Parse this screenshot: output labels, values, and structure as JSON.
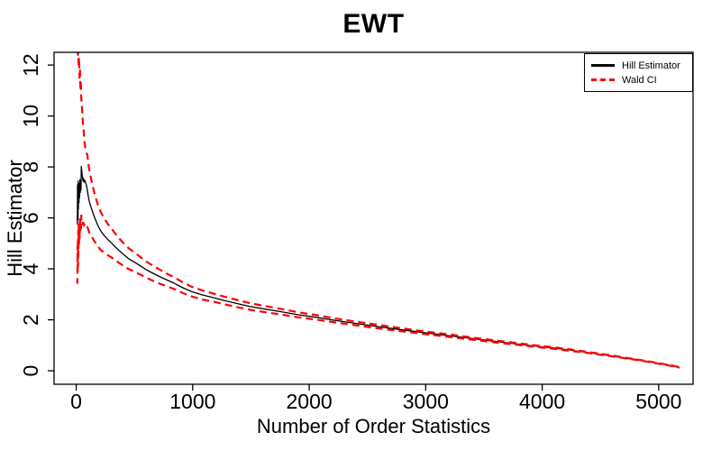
{
  "figure": {
    "title": "EWT",
    "xlabel": "Number of Order Statistics",
    "ylabel": "Hill Estimator"
  },
  "legend": {
    "position": "top-right",
    "items": [
      {
        "label": "Hill Estimator",
        "color": "#000000",
        "style": "solid"
      },
      {
        "label": "Wald CI",
        "color": "#ff0000",
        "style": "dashed"
      }
    ]
  },
  "chart_data": {
    "type": "line",
    "title": "EWT",
    "xlabel": "Number of Order Statistics",
    "ylabel": "Hill Estimator",
    "xlim": [
      -190,
      5295
    ],
    "ylim": [
      -0.53,
      12.5
    ],
    "xticks": [
      0,
      1000,
      2000,
      3000,
      4000,
      5000
    ],
    "yticks": [
      0,
      2,
      4,
      6,
      8,
      10,
      12
    ],
    "grid": false,
    "background": "#ffffff",
    "axis_color": "#000000",
    "legend_position": "top-right",
    "series": [
      {
        "id": "hill-estimator",
        "name": "Hill Estimator",
        "color": "#000000",
        "style": "solid",
        "width": 1.3,
        "points": [
          [
            8,
            6.1
          ],
          [
            10,
            5.75
          ],
          [
            11,
            7.3
          ],
          [
            13,
            6.2
          ],
          [
            14,
            7.0
          ],
          [
            16,
            5.95
          ],
          [
            17,
            7.45
          ],
          [
            19,
            6.35
          ],
          [
            21,
            7.2
          ],
          [
            24,
            6.6
          ],
          [
            26,
            7.35
          ],
          [
            29,
            6.8
          ],
          [
            32,
            7.5
          ],
          [
            35,
            7.0
          ],
          [
            38,
            7.3
          ],
          [
            41,
            7.1
          ],
          [
            44,
            8.02
          ],
          [
            47,
            7.9
          ],
          [
            50,
            7.75
          ],
          [
            54,
            7.6
          ],
          [
            58,
            7.45
          ],
          [
            63,
            7.55
          ],
          [
            68,
            7.4
          ],
          [
            74,
            7.48
          ],
          [
            81,
            7.38
          ],
          [
            88,
            7.28
          ],
          [
            96,
            7.05
          ],
          [
            105,
            6.82
          ],
          [
            115,
            6.6
          ],
          [
            126,
            6.45
          ],
          [
            138,
            6.28
          ],
          [
            152,
            6.08
          ],
          [
            168,
            5.9
          ],
          [
            186,
            5.7
          ],
          [
            206,
            5.52
          ],
          [
            228,
            5.38
          ],
          [
            252,
            5.25
          ],
          [
            278,
            5.12
          ],
          [
            306,
            5.0
          ],
          [
            338,
            4.85
          ],
          [
            372,
            4.7
          ],
          [
            410,
            4.55
          ],
          [
            450,
            4.4
          ],
          [
            494,
            4.28
          ],
          [
            540,
            4.15
          ],
          [
            590,
            4.0
          ],
          [
            645,
            3.86
          ],
          [
            705,
            3.72
          ],
          [
            770,
            3.58
          ],
          [
            840,
            3.44
          ],
          [
            915,
            3.26
          ],
          [
            995,
            3.1
          ],
          [
            1080,
            2.98
          ],
          [
            1170,
            2.88
          ],
          [
            1270,
            2.76
          ],
          [
            1380,
            2.64
          ],
          [
            1495,
            2.52
          ],
          [
            1620,
            2.42
          ],
          [
            1755,
            2.32
          ],
          [
            1900,
            2.2
          ],
          [
            2055,
            2.1
          ],
          [
            2220,
            1.98
          ],
          [
            2395,
            1.86
          ],
          [
            2580,
            1.74
          ],
          [
            2775,
            1.62
          ],
          [
            2980,
            1.5
          ],
          [
            3195,
            1.38
          ],
          [
            3420,
            1.25
          ],
          [
            3655,
            1.12
          ],
          [
            3900,
            0.99
          ],
          [
            4155,
            0.86
          ],
          [
            4420,
            0.7
          ],
          [
            4600,
            0.58
          ],
          [
            4760,
            0.47
          ],
          [
            4900,
            0.37
          ],
          [
            5020,
            0.27
          ],
          [
            5110,
            0.2
          ],
          [
            5180,
            0.13
          ]
        ]
      },
      {
        "id": "wald-ci-upper",
        "name": "Wald CI upper",
        "color": "#ff0000",
        "style": "dashed",
        "width": 2.2,
        "points": [
          [
            8,
            14.5
          ],
          [
            11,
            13.6
          ],
          [
            14,
            12.4
          ],
          [
            17,
            12.9
          ],
          [
            20,
            11.9
          ],
          [
            24,
            12.3
          ],
          [
            28,
            11.5
          ],
          [
            32,
            11.8
          ],
          [
            36,
            11.1
          ],
          [
            40,
            11.3
          ],
          [
            44,
            10.7
          ],
          [
            48,
            10.4
          ],
          [
            54,
            10.0
          ],
          [
            58,
            9.7
          ],
          [
            63,
            9.5
          ],
          [
            68,
            9.15
          ],
          [
            74,
            8.9
          ],
          [
            81,
            8.65
          ],
          [
            88,
            8.55
          ],
          [
            96,
            8.46
          ],
          [
            105,
            8.12
          ],
          [
            115,
            7.81
          ],
          [
            126,
            7.58
          ],
          [
            138,
            7.33
          ],
          [
            152,
            7.05
          ],
          [
            168,
            6.79
          ],
          [
            186,
            6.52
          ],
          [
            206,
            6.28
          ],
          [
            228,
            6.08
          ],
          [
            252,
            5.9
          ],
          [
            278,
            5.72
          ],
          [
            306,
            5.56
          ],
          [
            338,
            5.37
          ],
          [
            372,
            5.18
          ],
          [
            410,
            4.99
          ],
          [
            450,
            4.81
          ],
          [
            494,
            4.66
          ],
          [
            540,
            4.5
          ],
          [
            590,
            4.32
          ],
          [
            645,
            4.16
          ],
          [
            705,
            4.0
          ],
          [
            770,
            3.83
          ],
          [
            840,
            3.67
          ],
          [
            915,
            3.47
          ],
          [
            995,
            3.29
          ],
          [
            1080,
            3.16
          ],
          [
            1170,
            3.04
          ],
          [
            1270,
            2.91
          ],
          [
            1380,
            2.78
          ],
          [
            1495,
            2.65
          ],
          [
            1620,
            2.54
          ],
          [
            1755,
            2.43
          ],
          [
            1900,
            2.3
          ],
          [
            2055,
            2.19
          ],
          [
            2220,
            2.06
          ],
          [
            2395,
            1.93
          ],
          [
            2580,
            1.81
          ],
          [
            2775,
            1.68
          ],
          [
            2980,
            1.55
          ],
          [
            3195,
            1.43
          ],
          [
            3420,
            1.29
          ],
          [
            3655,
            1.16
          ],
          [
            3900,
            1.02
          ],
          [
            4155,
            0.89
          ],
          [
            4420,
            0.72
          ],
          [
            4600,
            0.6
          ],
          [
            4760,
            0.48
          ],
          [
            4900,
            0.38
          ],
          [
            5020,
            0.28
          ],
          [
            5110,
            0.21
          ],
          [
            5180,
            0.14
          ]
        ]
      },
      {
        "id": "wald-ci-lower",
        "name": "Wald CI lower",
        "color": "#ff0000",
        "style": "dashed",
        "width": 2.2,
        "points": [
          [
            8,
            3.55
          ],
          [
            10,
            3.45
          ],
          [
            11,
            4.9
          ],
          [
            13,
            3.8
          ],
          [
            14,
            5.2
          ],
          [
            16,
            4.1
          ],
          [
            17,
            5.5
          ],
          [
            19,
            4.5
          ],
          [
            21,
            5.7
          ],
          [
            24,
            4.9
          ],
          [
            26,
            5.8
          ],
          [
            29,
            5.2
          ],
          [
            32,
            6.05
          ],
          [
            35,
            5.5
          ],
          [
            38,
            5.85
          ],
          [
            41,
            5.6
          ],
          [
            44,
            6.1
          ],
          [
            48,
            5.95
          ],
          [
            54,
            5.85
          ],
          [
            58,
            5.75
          ],
          [
            63,
            5.8
          ],
          [
            68,
            5.7
          ],
          [
            74,
            5.72
          ],
          [
            81,
            5.66
          ],
          [
            88,
            5.6
          ],
          [
            96,
            5.64
          ],
          [
            105,
            5.52
          ],
          [
            115,
            5.39
          ],
          [
            126,
            5.32
          ],
          [
            138,
            5.23
          ],
          [
            152,
            5.11
          ],
          [
            168,
            5.01
          ],
          [
            186,
            4.88
          ],
          [
            206,
            4.76
          ],
          [
            228,
            4.68
          ],
          [
            252,
            4.6
          ],
          [
            278,
            4.52
          ],
          [
            306,
            4.44
          ],
          [
            338,
            4.33
          ],
          [
            372,
            4.22
          ],
          [
            410,
            4.11
          ],
          [
            450,
            3.99
          ],
          [
            494,
            3.9
          ],
          [
            540,
            3.8
          ],
          [
            590,
            3.68
          ],
          [
            645,
            3.56
          ],
          [
            705,
            3.44
          ],
          [
            770,
            3.33
          ],
          [
            840,
            3.21
          ],
          [
            915,
            3.05
          ],
          [
            995,
            2.91
          ],
          [
            1080,
            2.8
          ],
          [
            1170,
            2.72
          ],
          [
            1270,
            2.61
          ],
          [
            1380,
            2.5
          ],
          [
            1495,
            2.39
          ],
          [
            1620,
            2.3
          ],
          [
            1755,
            2.21
          ],
          [
            1900,
            2.1
          ],
          [
            2055,
            2.01
          ],
          [
            2220,
            1.9
          ],
          [
            2395,
            1.79
          ],
          [
            2580,
            1.67
          ],
          [
            2775,
            1.56
          ],
          [
            2980,
            1.45
          ],
          [
            3195,
            1.33
          ],
          [
            3420,
            1.21
          ],
          [
            3655,
            1.08
          ],
          [
            3900,
            0.96
          ],
          [
            4155,
            0.83
          ],
          [
            4420,
            0.68
          ],
          [
            4600,
            0.56
          ],
          [
            4760,
            0.46
          ],
          [
            4900,
            0.36
          ],
          [
            5020,
            0.26
          ],
          [
            5110,
            0.19
          ],
          [
            5180,
            0.12
          ]
        ]
      }
    ]
  }
}
